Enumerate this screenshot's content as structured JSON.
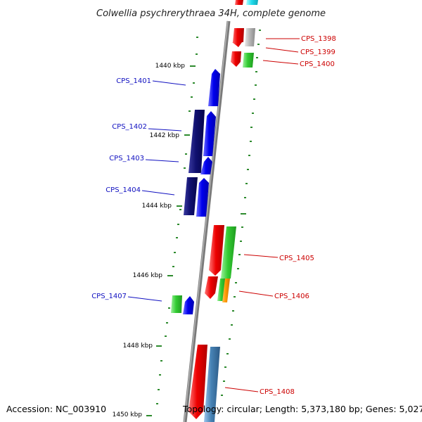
{
  "title": "Colwellia psychrerythraea 34H, complete genome",
  "accession": "Accession: NC_003910",
  "topology": "Topology: circular; Length: 5,373,180 bp; Genes: 5,027",
  "kbp_labels": [
    "1440 kbp",
    "1442 kbp",
    "1444 kbp",
    "1446 kbp",
    "1448 kbp",
    "1450 kbp"
  ],
  "genes": {
    "cps_1398": "CPS_1398",
    "cps_1399": "CPS_1399",
    "cps_1400": "CPS_1400",
    "cps_1401": "CPS_1401",
    "cps_1402": "CPS_1402",
    "cps_1403": "CPS_1403",
    "cps_1404": "CPS_1404",
    "cps_1405": "CPS_1405",
    "cps_1406": "CPS_1406",
    "cps_1407": "CPS_1407",
    "cps_1408": "CPS_1408"
  },
  "colors": {
    "forward_label": "#1010c0",
    "reverse_label": "#cc0000",
    "backbone": "#808080",
    "tick": "#2e8b2e"
  }
}
